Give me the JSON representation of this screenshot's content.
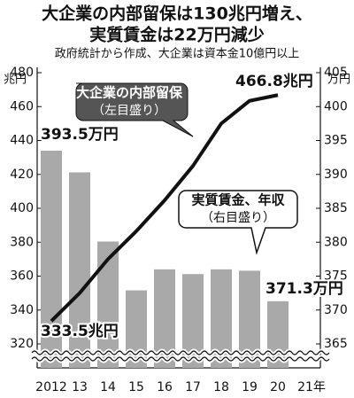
{
  "chart_data": {
    "type": "bar-line",
    "title": [
      "大企業の内部留保は130兆円増え、",
      "実質賃金は22万円減少"
    ],
    "subtitle": "政府統計から作成、大企業は資本金10億円以上",
    "categories": [
      "2012",
      "13",
      "14",
      "15",
      "16",
      "17",
      "18",
      "19",
      "20",
      "21年"
    ],
    "y_unit": "兆円",
    "y2_unit": "万円",
    "ylim": [
      320,
      480
    ],
    "yticks": [
      320,
      340,
      360,
      380,
      400,
      420,
      440,
      460,
      480
    ],
    "y2lim": [
      365,
      405
    ],
    "y2ticks": [
      365,
      370,
      375,
      380,
      385,
      390,
      395,
      400,
      405
    ],
    "series": [
      {
        "name": "実質賃金、年収",
        "type": "bar",
        "axis": "y2",
        "color": "#a9a9a9",
        "values": [
          393.5,
          390.3,
          380.1,
          372.9,
          376.0,
          375.3,
          376.0,
          375.8,
          371.3,
          null
        ],
        "value_labels": [
          "393.5万円",
          null,
          null,
          null,
          null,
          null,
          null,
          null,
          "371.3万円",
          null
        ]
      },
      {
        "name": "大企業の内部留保",
        "type": "line",
        "axis": "y",
        "color": "#111111",
        "values": [
          333.5,
          350,
          370,
          386.5,
          404.7,
          425,
          450,
          463.4,
          466.8,
          null
        ],
        "value_labels": [
          "333.5兆円",
          null,
          null,
          null,
          null,
          null,
          null,
          null,
          "466.8兆円",
          null
        ]
      }
    ],
    "annotations": [
      {
        "text": "大企業の内部留保",
        "note": "（左目盛り）"
      },
      {
        "text": "実質賃金、年収",
        "note": "（右目盛り）"
      }
    ]
  }
}
